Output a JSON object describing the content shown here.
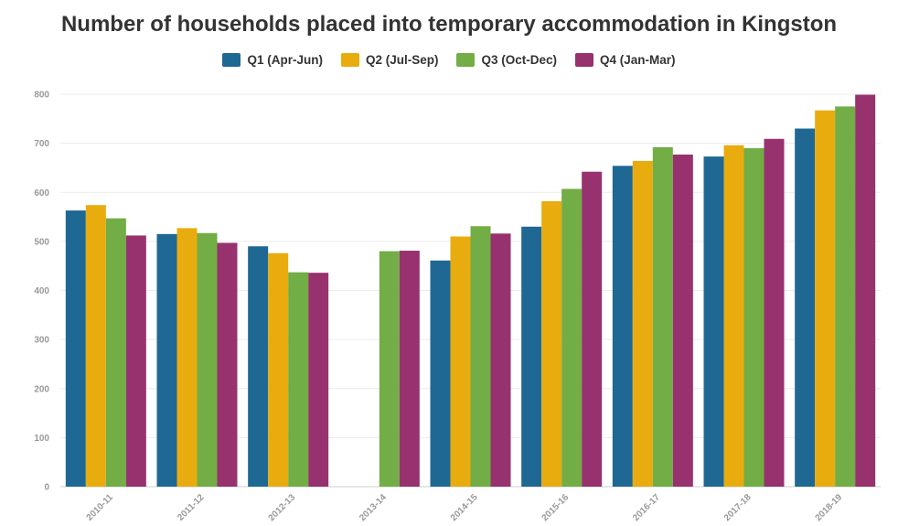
{
  "chart_data": {
    "type": "bar",
    "title": "Number of households placed into temporary accommodation in Kingston",
    "xlabel": "",
    "ylabel": "",
    "ylim": [
      0,
      800
    ],
    "yticks": [
      0,
      100,
      200,
      300,
      400,
      500,
      600,
      700,
      800
    ],
    "grid": true,
    "legend_position": "top-center",
    "categories": [
      "2010-11",
      "2011-12",
      "2012-13",
      "2013-14",
      "2014-15",
      "2015-16",
      "2016-17",
      "2017-18",
      "2018-19"
    ],
    "series": [
      {
        "name": "Q1 (Apr-Jun)",
        "color": "#1f6893",
        "values": [
          563,
          515,
          490,
          null,
          461,
          530,
          654,
          673,
          730
        ]
      },
      {
        "name": "Q2 (Jul-Sep)",
        "color": "#e8ac0f",
        "values": [
          574,
          527,
          476,
          null,
          510,
          582,
          664,
          696,
          767
        ]
      },
      {
        "name": "Q3 (Oct-Dec)",
        "color": "#72ad45",
        "values": [
          547,
          517,
          437,
          480,
          531,
          607,
          692,
          690,
          775
        ]
      },
      {
        "name": "Q4 (Jan-Mar)",
        "color": "#97326e",
        "values": [
          512,
          497,
          436,
          481,
          516,
          642,
          677,
          709,
          799
        ]
      }
    ]
  }
}
